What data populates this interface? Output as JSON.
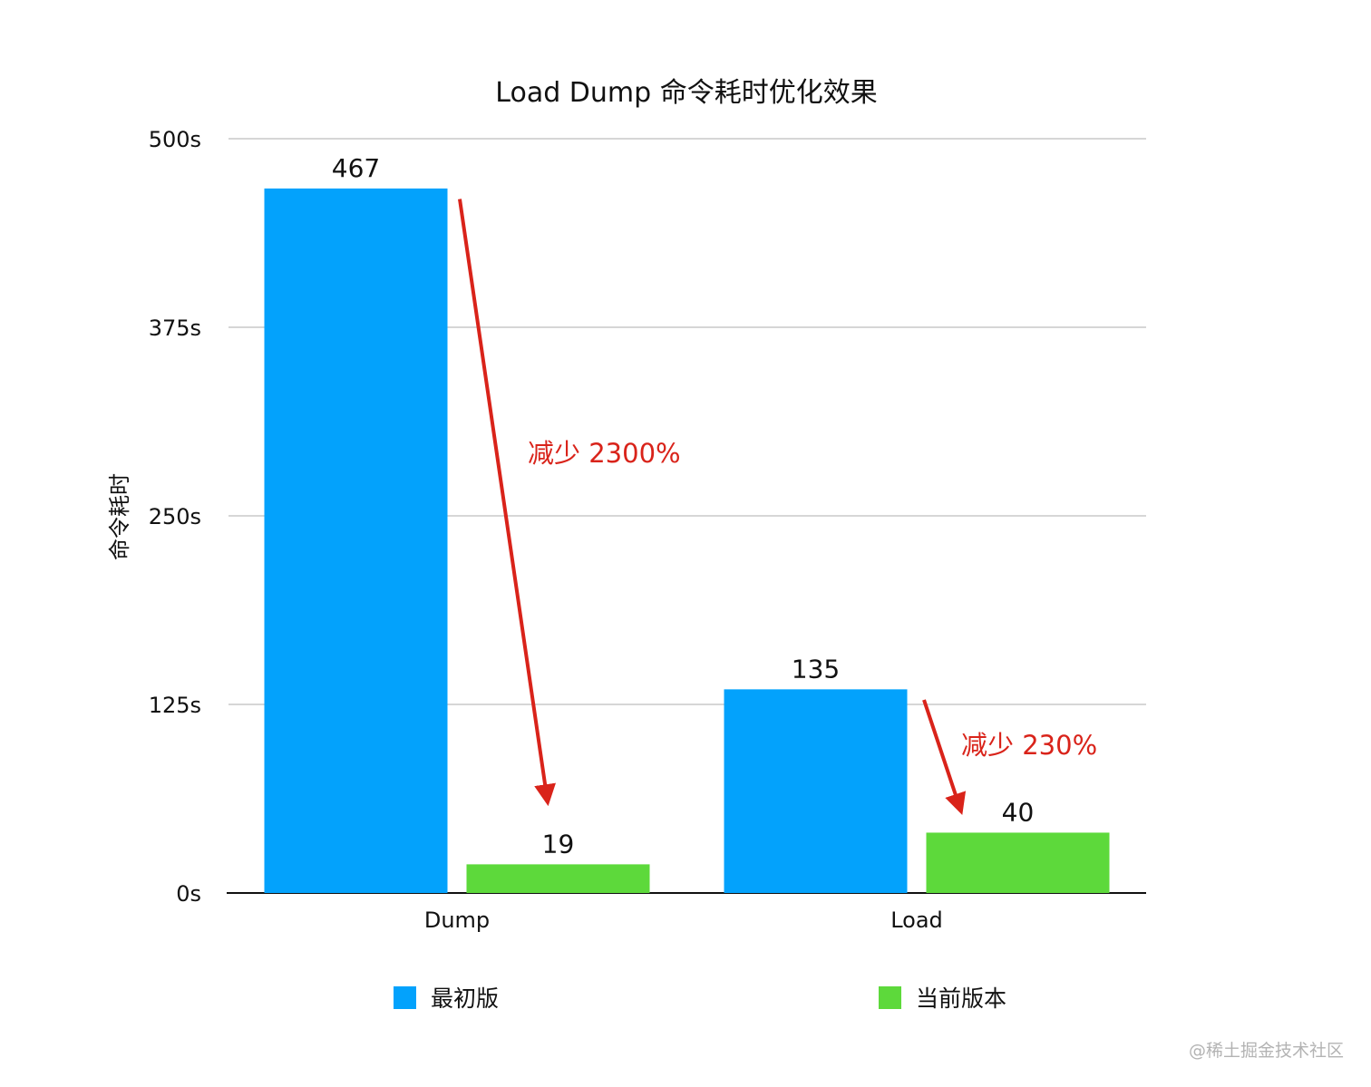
{
  "chart_data": {
    "type": "bar",
    "title": "Load Dump 命令耗时优化效果",
    "xlabel": "",
    "ylabel": "命令耗时",
    "categories": [
      "Dump",
      "Load"
    ],
    "series": [
      {
        "name": "最初版",
        "values": [
          467,
          135
        ],
        "color": "#03a2fc"
      },
      {
        "name": "当前版本",
        "values": [
          19,
          40
        ],
        "color": "#5dd93b"
      }
    ],
    "ylim": [
      0,
      500
    ],
    "yticks": [
      0,
      125,
      250,
      375,
      500
    ],
    "ytick_labels": [
      "0s",
      "125s",
      "250s",
      "375s",
      "500s"
    ],
    "grid": true,
    "legend": "bottom",
    "annotations": [
      {
        "text": "减少 2300%",
        "category": "Dump",
        "from_value": 460,
        "to_value": 60
      },
      {
        "text": "减少 230%",
        "category": "Load",
        "from_value": 128,
        "to_value": 54
      }
    ],
    "annotation_color": "#d9231a"
  },
  "watermark": "@稀土掘金技术社区"
}
